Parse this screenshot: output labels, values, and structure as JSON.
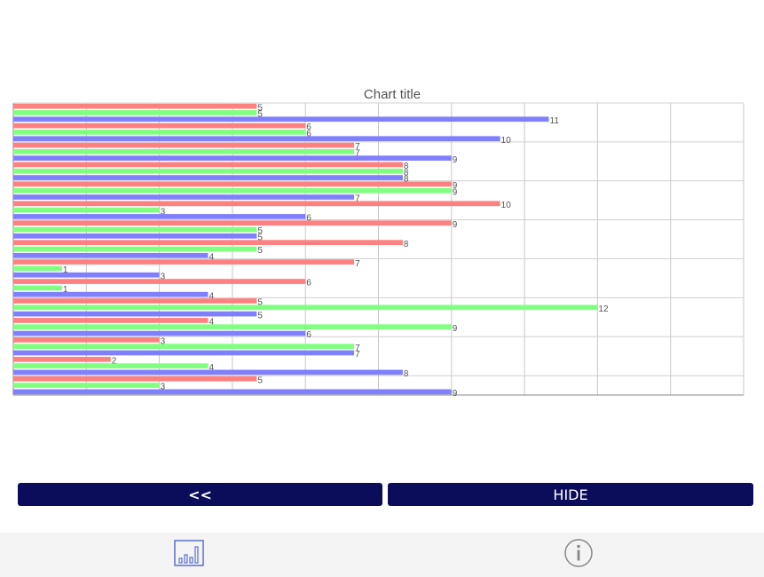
{
  "chart_data": {
    "type": "bar",
    "orientation": "horizontal",
    "title": "Chart title",
    "xlim": [
      0,
      15
    ],
    "grid": true,
    "series_colors": [
      "#ff8080",
      "#80ff80",
      "#8080ff"
    ],
    "groups": [
      [
        [
          0,
          5
        ],
        [
          1,
          5
        ],
        [
          2,
          11
        ]
      ],
      [
        [
          0,
          6
        ],
        [
          1,
          6
        ],
        [
          2,
          10
        ]
      ],
      [
        [
          0,
          7
        ],
        [
          1,
          7
        ],
        [
          2,
          9
        ]
      ],
      [
        [
          0,
          8
        ],
        [
          1,
          8
        ],
        [
          2,
          8
        ]
      ],
      [
        [
          0,
          9
        ],
        [
          1,
          9
        ],
        [
          2,
          7
        ]
      ],
      [
        [
          0,
          10
        ],
        [
          1,
          3
        ],
        [
          2,
          6
        ]
      ],
      [
        [
          0,
          9
        ],
        [
          1,
          5
        ],
        [
          2,
          5
        ]
      ],
      [
        [
          0,
          8
        ],
        [
          1,
          5
        ],
        [
          2,
          4
        ]
      ],
      [
        [
          0,
          7
        ],
        [
          1,
          1
        ],
        [
          2,
          3
        ]
      ],
      [
        [
          0,
          6
        ],
        [
          1,
          1
        ],
        [
          2,
          4
        ]
      ],
      [
        [
          0,
          5
        ],
        [
          1,
          12
        ],
        [
          2,
          5
        ]
      ],
      [
        [
          0,
          4
        ],
        [
          1,
          9
        ],
        [
          2,
          6
        ]
      ],
      [
        [
          0,
          3
        ],
        [
          1,
          7
        ],
        [
          2,
          7
        ]
      ],
      [
        [
          0,
          2
        ],
        [
          1,
          4
        ],
        [
          2,
          8
        ]
      ],
      [
        [
          0,
          5
        ],
        [
          1,
          3
        ],
        [
          2,
          9
        ]
      ]
    ]
  },
  "buttons": {
    "back_label": "<<",
    "hide_label": "HIDE"
  },
  "tabbar": {
    "chart_tab_icon": "bar-chart-icon",
    "info_tab_icon": "info-icon"
  }
}
